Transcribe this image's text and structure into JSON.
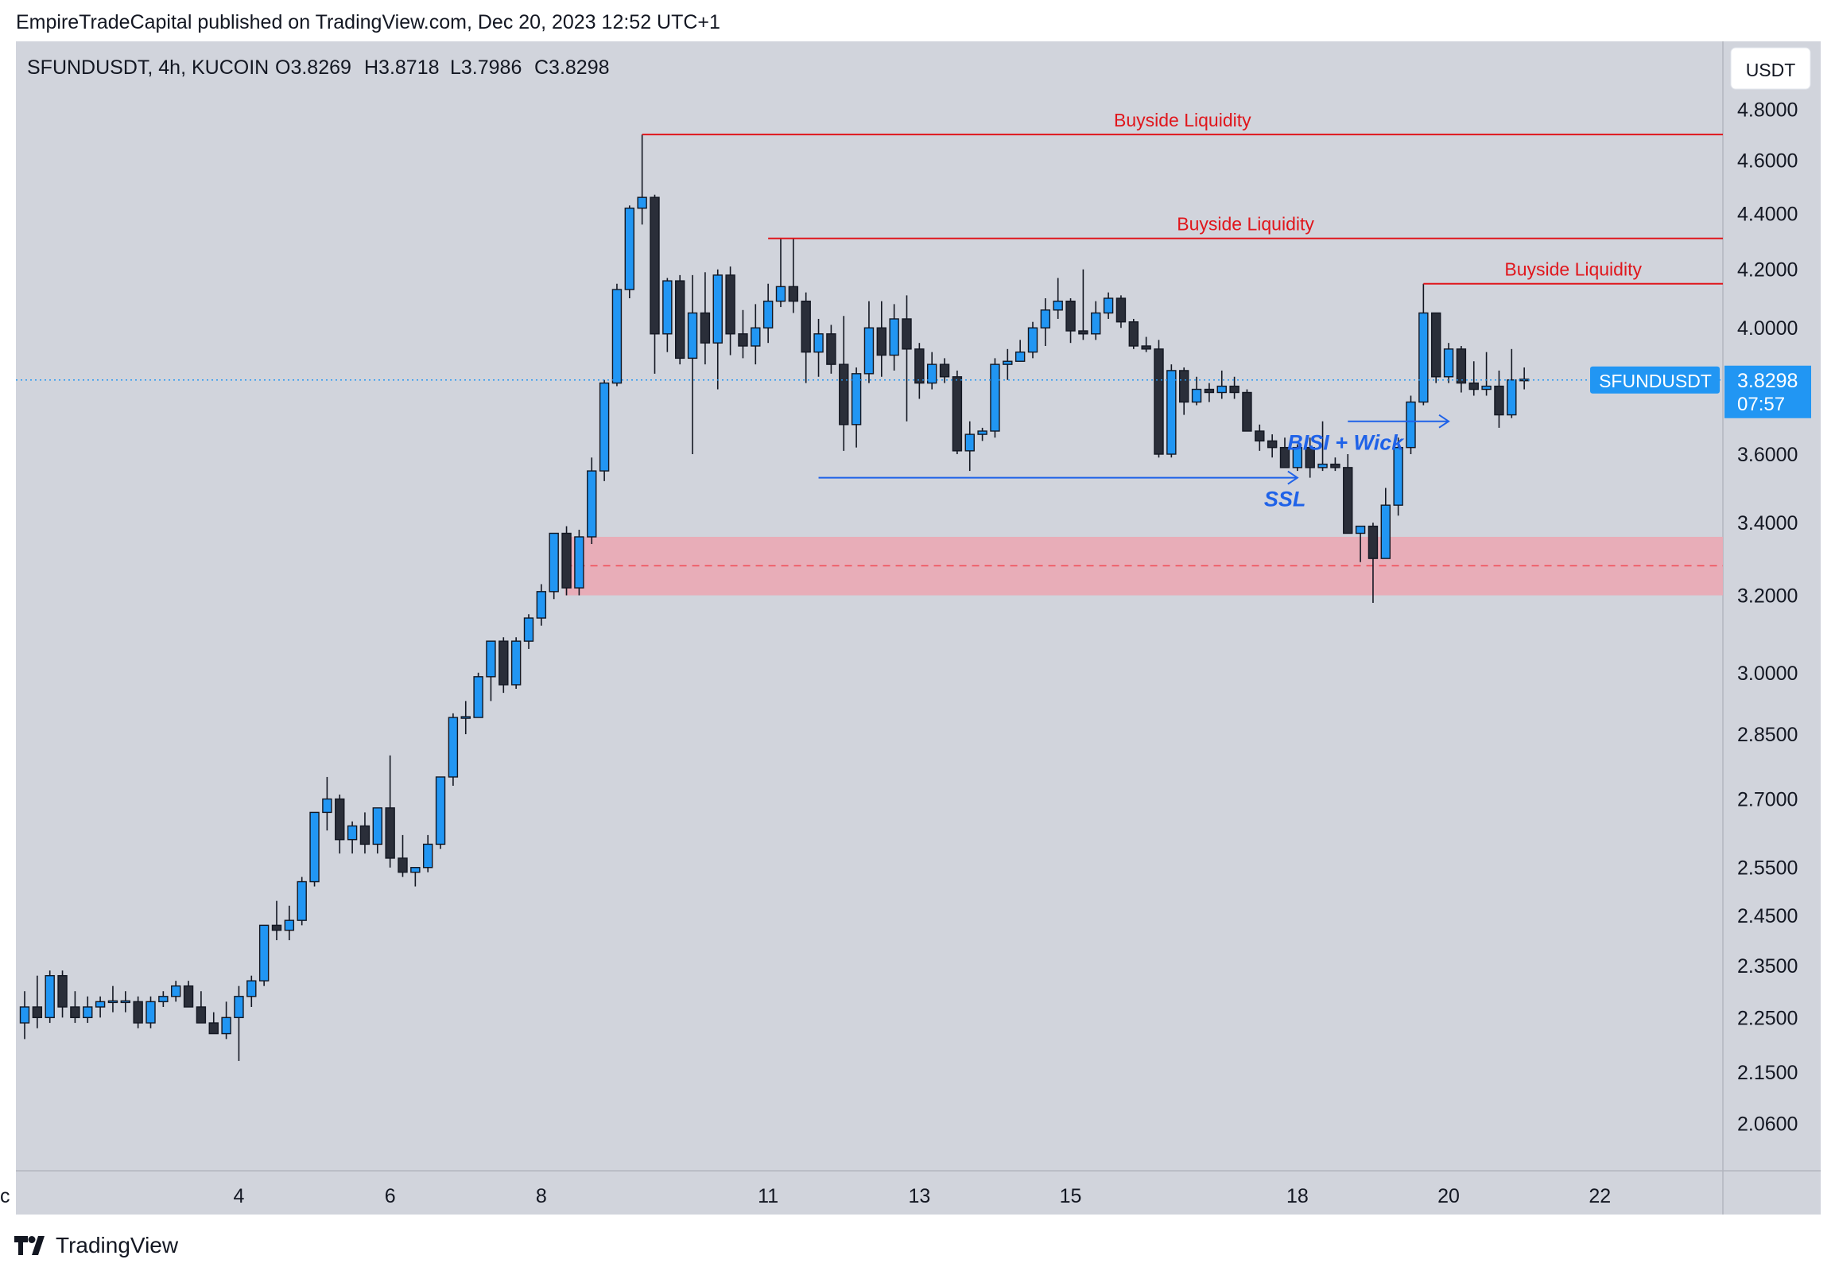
{
  "publisher_line": "EmpireTradeCapital published on TradingView.com, Dec 20, 2023 12:52 UTC+1",
  "brand_name": "TradingView",
  "header": {
    "symbol": "SFUNDUSDT, 4h, KUCOIN",
    "open": "O3.8269",
    "high": "H3.8718",
    "low": "L3.7986",
    "close": "C3.8298"
  },
  "currency_label": "USDT",
  "colors": {
    "bull": "#2196f3",
    "bear": "#2a2e39",
    "bsl": "#e0161c",
    "annot": "#1f62e8",
    "zone": "#eaa9b4",
    "zone_mid": "#f0505a",
    "background": "#d1d4dc",
    "last_price": "#2196f3"
  },
  "chart_data": {
    "type": "candlestick",
    "title": "SFUNDUSDT, 4h, KUCOIN",
    "y_scale": "log",
    "ylim": [
      1.98,
      5.08
    ],
    "y_ticks": [
      "4.8000",
      "4.6000",
      "4.4000",
      "4.2000",
      "4.0000",
      "3.6000",
      "3.4000",
      "3.2000",
      "3.0000",
      "2.8500",
      "2.7000",
      "2.5500",
      "2.4500",
      "2.3500",
      "2.2500",
      "2.1500",
      "2.0600"
    ],
    "x_ticks": [
      {
        "label": "ec",
        "bar": -2
      },
      {
        "label": "4",
        "bar": 17
      },
      {
        "label": "6",
        "bar": 29
      },
      {
        "label": "8",
        "bar": 41
      },
      {
        "label": "11",
        "bar": 59
      },
      {
        "label": "13",
        "bar": 71
      },
      {
        "label": "15",
        "bar": 83
      },
      {
        "label": "18",
        "bar": 101
      },
      {
        "label": "20",
        "bar": 113
      },
      {
        "label": "22",
        "bar": 125
      }
    ],
    "candles": [
      [
        2.24,
        2.3,
        2.21,
        2.27
      ],
      [
        2.27,
        2.33,
        2.23,
        2.25
      ],
      [
        2.25,
        2.34,
        2.24,
        2.33
      ],
      [
        2.33,
        2.34,
        2.25,
        2.27
      ],
      [
        2.27,
        2.3,
        2.24,
        2.25
      ],
      [
        2.25,
        2.29,
        2.24,
        2.27
      ],
      [
        2.27,
        2.29,
        2.25,
        2.28
      ],
      [
        2.28,
        2.31,
        2.26,
        2.28
      ],
      [
        2.28,
        2.3,
        2.26,
        2.28
      ],
      [
        2.28,
        2.29,
        2.23,
        2.24
      ],
      [
        2.24,
        2.29,
        2.23,
        2.28
      ],
      [
        2.28,
        2.3,
        2.27,
        2.29
      ],
      [
        2.29,
        2.32,
        2.28,
        2.31
      ],
      [
        2.31,
        2.32,
        2.27,
        2.27
      ],
      [
        2.27,
        2.3,
        2.24,
        2.24
      ],
      [
        2.24,
        2.26,
        2.22,
        2.22
      ],
      [
        2.22,
        2.28,
        2.21,
        2.25
      ],
      [
        2.25,
        2.31,
        2.17,
        2.29
      ],
      [
        2.29,
        2.33,
        2.27,
        2.32
      ],
      [
        2.32,
        2.43,
        2.31,
        2.43
      ],
      [
        2.43,
        2.48,
        2.4,
        2.42
      ],
      [
        2.42,
        2.47,
        2.4,
        2.44
      ],
      [
        2.44,
        2.53,
        2.43,
        2.52
      ],
      [
        2.52,
        2.67,
        2.51,
        2.67
      ],
      [
        2.67,
        2.75,
        2.63,
        2.7
      ],
      [
        2.7,
        2.71,
        2.58,
        2.61
      ],
      [
        2.61,
        2.65,
        2.58,
        2.64
      ],
      [
        2.64,
        2.67,
        2.58,
        2.6
      ],
      [
        2.6,
        2.68,
        2.58,
        2.68
      ],
      [
        2.68,
        2.8,
        2.55,
        2.57
      ],
      [
        2.57,
        2.62,
        2.53,
        2.54
      ],
      [
        2.54,
        2.55,
        2.51,
        2.55
      ],
      [
        2.55,
        2.62,
        2.54,
        2.6
      ],
      [
        2.6,
        2.75,
        2.59,
        2.75
      ],
      [
        2.75,
        2.9,
        2.73,
        2.89
      ],
      [
        2.89,
        2.93,
        2.85,
        2.89
      ],
      [
        2.89,
        3.0,
        2.89,
        2.99
      ],
      [
        2.99,
        3.08,
        2.93,
        3.08
      ],
      [
        3.08,
        3.09,
        2.95,
        2.97
      ],
      [
        2.97,
        3.09,
        2.96,
        3.08
      ],
      [
        3.08,
        3.15,
        3.06,
        3.14
      ],
      [
        3.14,
        3.23,
        3.12,
        3.21
      ],
      [
        3.21,
        3.37,
        3.19,
        3.37
      ],
      [
        3.37,
        3.39,
        3.2,
        3.22
      ],
      [
        3.22,
        3.38,
        3.2,
        3.36
      ],
      [
        3.36,
        3.59,
        3.34,
        3.55
      ],
      [
        3.55,
        3.83,
        3.52,
        3.82
      ],
      [
        3.82,
        4.15,
        3.81,
        4.13
      ],
      [
        4.13,
        4.43,
        4.1,
        4.42
      ],
      [
        4.42,
        4.7,
        4.36,
        4.46
      ],
      [
        4.46,
        4.47,
        3.85,
        3.98
      ],
      [
        3.98,
        4.17,
        3.92,
        4.16
      ],
      [
        4.16,
        4.18,
        3.88,
        3.9
      ],
      [
        3.9,
        4.18,
        3.6,
        4.05
      ],
      [
        4.05,
        4.19,
        3.88,
        3.95
      ],
      [
        3.95,
        4.2,
        3.8,
        4.18
      ],
      [
        4.18,
        4.21,
        3.91,
        3.98
      ],
      [
        3.98,
        4.06,
        3.9,
        3.94
      ],
      [
        3.94,
        4.08,
        3.88,
        4.0
      ],
      [
        4.0,
        4.15,
        3.95,
        4.09
      ],
      [
        4.09,
        4.31,
        4.07,
        4.14
      ],
      [
        4.14,
        4.31,
        4.05,
        4.09
      ],
      [
        4.09,
        4.12,
        3.82,
        3.92
      ],
      [
        3.92,
        4.03,
        3.84,
        3.98
      ],
      [
        3.98,
        4.01,
        3.85,
        3.88
      ],
      [
        3.88,
        4.04,
        3.61,
        3.69
      ],
      [
        3.69,
        3.87,
        3.62,
        3.85
      ],
      [
        3.85,
        4.09,
        3.82,
        4.0
      ],
      [
        4.0,
        4.09,
        3.84,
        3.91
      ],
      [
        3.91,
        4.08,
        3.86,
        4.03
      ],
      [
        4.03,
        4.11,
        3.7,
        3.93
      ],
      [
        3.93,
        3.95,
        3.77,
        3.82
      ],
      [
        3.82,
        3.92,
        3.8,
        3.88
      ],
      [
        3.88,
        3.9,
        3.82,
        3.84
      ],
      [
        3.84,
        3.86,
        3.6,
        3.61
      ],
      [
        3.61,
        3.7,
        3.55,
        3.66
      ],
      [
        3.66,
        3.68,
        3.64,
        3.67
      ],
      [
        3.67,
        3.9,
        3.65,
        3.88
      ],
      [
        3.88,
        3.93,
        3.83,
        3.89
      ],
      [
        3.89,
        3.96,
        3.89,
        3.92
      ],
      [
        3.92,
        4.02,
        3.9,
        4.0
      ],
      [
        4.0,
        4.1,
        3.94,
        4.06
      ],
      [
        4.06,
        4.17,
        4.03,
        4.09
      ],
      [
        4.09,
        4.1,
        3.95,
        3.99
      ],
      [
        3.99,
        4.2,
        3.96,
        3.98
      ],
      [
        3.98,
        4.09,
        3.96,
        4.05
      ],
      [
        4.05,
        4.12,
        4.03,
        4.1
      ],
      [
        4.1,
        4.11,
        4.0,
        4.02
      ],
      [
        4.02,
        4.03,
        3.93,
        3.94
      ],
      [
        3.94,
        3.97,
        3.92,
        3.93
      ],
      [
        3.93,
        3.96,
        3.59,
        3.6
      ],
      [
        3.6,
        3.88,
        3.59,
        3.86
      ],
      [
        3.86,
        3.87,
        3.72,
        3.76
      ],
      [
        3.76,
        3.84,
        3.75,
        3.8
      ],
      [
        3.8,
        3.82,
        3.76,
        3.79
      ],
      [
        3.79,
        3.86,
        3.77,
        3.81
      ],
      [
        3.81,
        3.84,
        3.77,
        3.79
      ],
      [
        3.79,
        3.8,
        3.67,
        3.67
      ],
      [
        3.67,
        3.69,
        3.61,
        3.64
      ],
      [
        3.64,
        3.66,
        3.59,
        3.62
      ],
      [
        3.62,
        3.65,
        3.56,
        3.56
      ],
      [
        3.56,
        3.63,
        3.55,
        3.62
      ],
      [
        3.62,
        3.65,
        3.53,
        3.56
      ],
      [
        3.56,
        3.7,
        3.55,
        3.57
      ],
      [
        3.57,
        3.59,
        3.55,
        3.56
      ],
      [
        3.56,
        3.6,
        3.37,
        3.37
      ],
      [
        3.37,
        3.39,
        3.29,
        3.39
      ],
      [
        3.39,
        3.4,
        3.18,
        3.3
      ],
      [
        3.3,
        3.5,
        3.3,
        3.45
      ],
      [
        3.45,
        3.65,
        3.42,
        3.62
      ],
      [
        3.62,
        3.78,
        3.6,
        3.76
      ],
      [
        3.76,
        4.15,
        3.75,
        4.05
      ],
      [
        4.05,
        4.05,
        3.82,
        3.84
      ],
      [
        3.84,
        3.95,
        3.82,
        3.93
      ],
      [
        3.93,
        3.94,
        3.79,
        3.82
      ],
      [
        3.82,
        3.89,
        3.78,
        3.8
      ],
      [
        3.8,
        3.92,
        3.78,
        3.81
      ],
      [
        3.81,
        3.86,
        3.68,
        3.72
      ],
      [
        3.72,
        3.93,
        3.71,
        3.83
      ],
      [
        3.83,
        3.87,
        3.8,
        3.83
      ]
    ],
    "annotations": {
      "buyside_levels": [
        {
          "label": "Buyside Liquidity",
          "price": 4.7,
          "from_bar": 49
        },
        {
          "label": "Buyside Liquidity",
          "price": 4.31,
          "from_bar": 59
        },
        {
          "label": "Buyside Liquidity",
          "price": 4.15,
          "from_bar": 111
        }
      ],
      "ssl": {
        "label": "SSL",
        "price": 3.53,
        "from_bar": 63,
        "to_bar": 101
      },
      "bisi": {
        "label": "BISI + Wick",
        "price": 3.7,
        "from_bar": 105,
        "to_bar": 113
      },
      "zone": {
        "top": 3.36,
        "bottom": 3.2,
        "mid": 3.28,
        "from_bar": 43
      }
    },
    "last_price": {
      "symbol": "SFUNDUSDT",
      "price": "3.8298",
      "countdown": "07:57",
      "value": 3.8298
    }
  }
}
